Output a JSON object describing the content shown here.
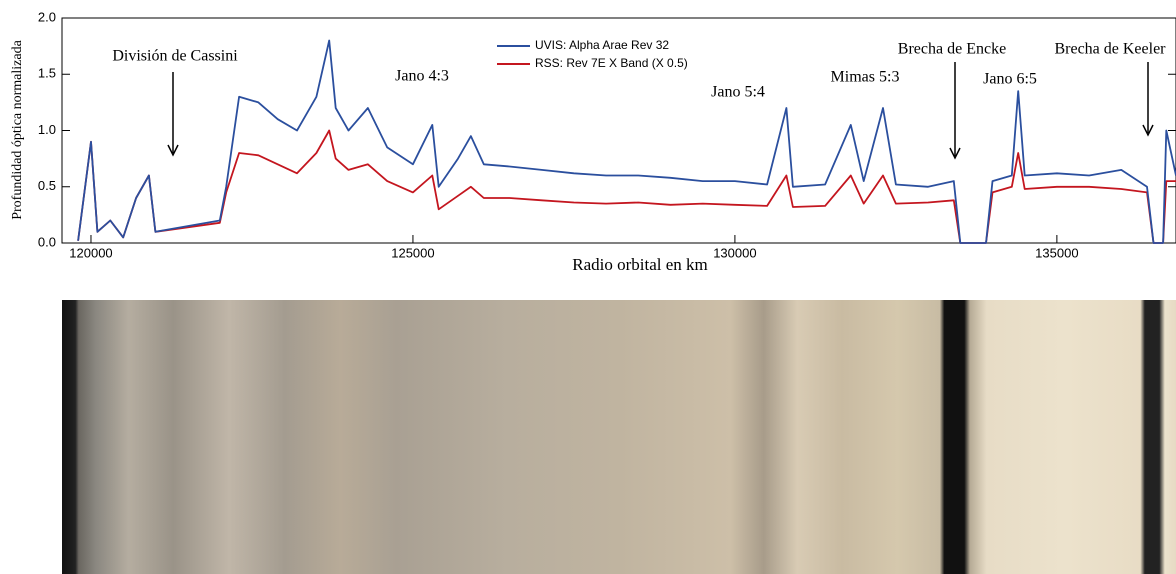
{
  "chart_data": {
    "type": "line",
    "xlabel": "Radio orbital en km",
    "ylabel": "Profundidad óptica normalizada",
    "x": [
      119800,
      120000,
      120100,
      120300,
      120500,
      120700,
      120900,
      121000,
      121500,
      122000,
      122100,
      122300,
      122600,
      122900,
      123200,
      123500,
      123700,
      123800,
      124000,
      124300,
      124600,
      125000,
      125300,
      125400,
      125700,
      125900,
      126100,
      126500,
      127000,
      127500,
      128000,
      128500,
      129000,
      129500,
      130000,
      130500,
      130800,
      130900,
      131400,
      131800,
      132000,
      132300,
      132500,
      133000,
      133400,
      133500,
      133900,
      134000,
      134300,
      134400,
      134500,
      135000,
      135500,
      136000,
      136400,
      136500,
      136650,
      136700,
      136850
    ],
    "series": [
      {
        "name": "UVIS: Alpha Arae Rev 32",
        "color": "#2b4f9e",
        "values": [
          0.02,
          0.9,
          0.1,
          0.2,
          0.05,
          0.4,
          0.6,
          0.1,
          0.15,
          0.2,
          0.5,
          1.3,
          1.25,
          1.1,
          1.0,
          1.3,
          1.8,
          1.2,
          1.0,
          1.2,
          0.85,
          0.7,
          1.05,
          0.5,
          0.75,
          0.95,
          0.7,
          0.68,
          0.65,
          0.62,
          0.6,
          0.6,
          0.58,
          0.55,
          0.55,
          0.52,
          1.2,
          0.5,
          0.52,
          1.05,
          0.55,
          1.2,
          0.52,
          0.5,
          0.55,
          0.0,
          0.0,
          0.55,
          0.6,
          1.35,
          0.6,
          0.62,
          0.6,
          0.65,
          0.5,
          0.0,
          0.0,
          1.0,
          0.6
        ]
      },
      {
        "name": "RSS: Rev 7E X Band (X 0.5)",
        "color": "#c4161f",
        "values": [
          0.02,
          0.9,
          0.1,
          0.2,
          0.05,
          0.4,
          0.6,
          0.1,
          0.14,
          0.18,
          0.45,
          0.8,
          0.78,
          0.7,
          0.62,
          0.8,
          1.0,
          0.75,
          0.65,
          0.7,
          0.55,
          0.45,
          0.6,
          0.3,
          0.42,
          0.5,
          0.4,
          0.4,
          0.38,
          0.36,
          0.35,
          0.36,
          0.34,
          0.35,
          0.34,
          0.33,
          0.6,
          0.32,
          0.33,
          0.6,
          0.35,
          0.6,
          0.35,
          0.36,
          0.38,
          0.0,
          0.0,
          0.45,
          0.5,
          0.8,
          0.48,
          0.5,
          0.5,
          0.48,
          0.45,
          0.0,
          0.0,
          0.55,
          0.55
        ]
      }
    ],
    "xlim": [
      119550,
      136850
    ],
    "ylim": [
      0,
      2
    ],
    "xticks": [
      120000,
      125000,
      130000,
      135000
    ],
    "yticks": [
      {
        "value": 0,
        "label": "0.0"
      },
      {
        "value": 0.5,
        "label": "0.5"
      },
      {
        "value": 1,
        "label": "1.0"
      },
      {
        "value": 1.5,
        "label": "1.5"
      },
      {
        "value": 2,
        "label": "2.0"
      }
    ],
    "annotations": [
      "División de Cassini",
      "Jano 4:3",
      "Jano 5:4",
      "Mimas 5:3",
      "Brecha de Encke",
      "Jano 6:5",
      "Brecha de Keeler"
    ]
  }
}
